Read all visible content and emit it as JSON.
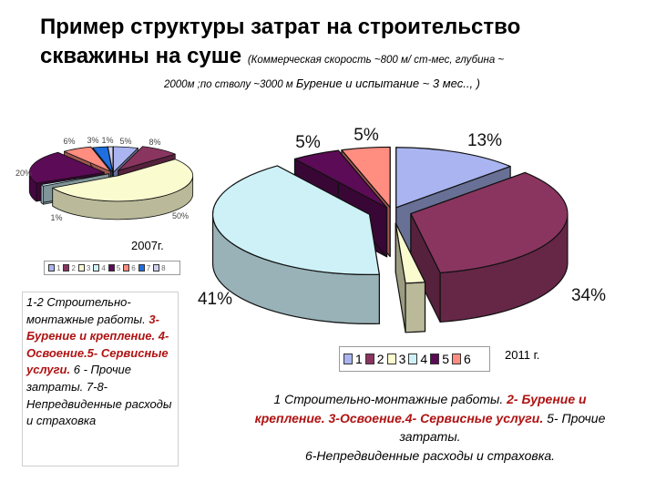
{
  "title_line1": "Пример структуры затрат на строительство",
  "title_line2": "скважины на суше",
  "subtitle_part1": "(Коммерческая скорость ~800 м/ ст-мес, глубина ~",
  "subtitle_part2": "2000м ;по стволу ~3000 м",
  "subtitle_part3": "Бурение и испытание ~ 3 мес.., )",
  "colors": {
    "s1": "#a9b4f0",
    "s2": "#8a3560",
    "s3": "#fbfbd0",
    "s4": "#cdf1f7",
    "s5": "#5c0b56",
    "s6": "#ff8d80",
    "s7": "#1f6fe0",
    "s8": "#cfd0ee"
  },
  "description_left": {
    "p1": "1-2 Строительно-монтажные работы.",
    "p2": "3- Бурение и крепление. 4- Освоение.5- Сервисные услуги.",
    "p3": "6 - Прочие затраты. 7-8-Непредвиденные расходы и страховка"
  },
  "description_right": {
    "p1": "1 Строительно-монтажные работы.",
    "p2": "2- Бурение и крепление. 3-Освоение.4- Сервисные услуги.",
    "p3": "5- Прочие затраты.",
    "p4": "6-Непредвиденные расходы и страховка."
  },
  "chart_data": [
    {
      "type": "pie",
      "title": "2007г.",
      "categories": [
        "1",
        "2",
        "3",
        "4",
        "5",
        "6",
        "7",
        "8"
      ],
      "values": [
        5,
        8,
        50,
        1,
        20,
        6,
        3,
        1
      ],
      "labels": [
        "5%",
        "8%",
        "50%",
        "1%",
        "20%",
        "6%",
        "3%",
        "1%"
      ],
      "legend": "bottom"
    },
    {
      "type": "pie",
      "title": "2011 г.",
      "categories": [
        "1",
        "2",
        "3",
        "4",
        "5",
        "6"
      ],
      "values": [
        13,
        34,
        2,
        41,
        5,
        5
      ],
      "labels": [
        "13%",
        "34%",
        "",
        "41%",
        "5%",
        "5%"
      ],
      "legend": "bottom"
    }
  ]
}
